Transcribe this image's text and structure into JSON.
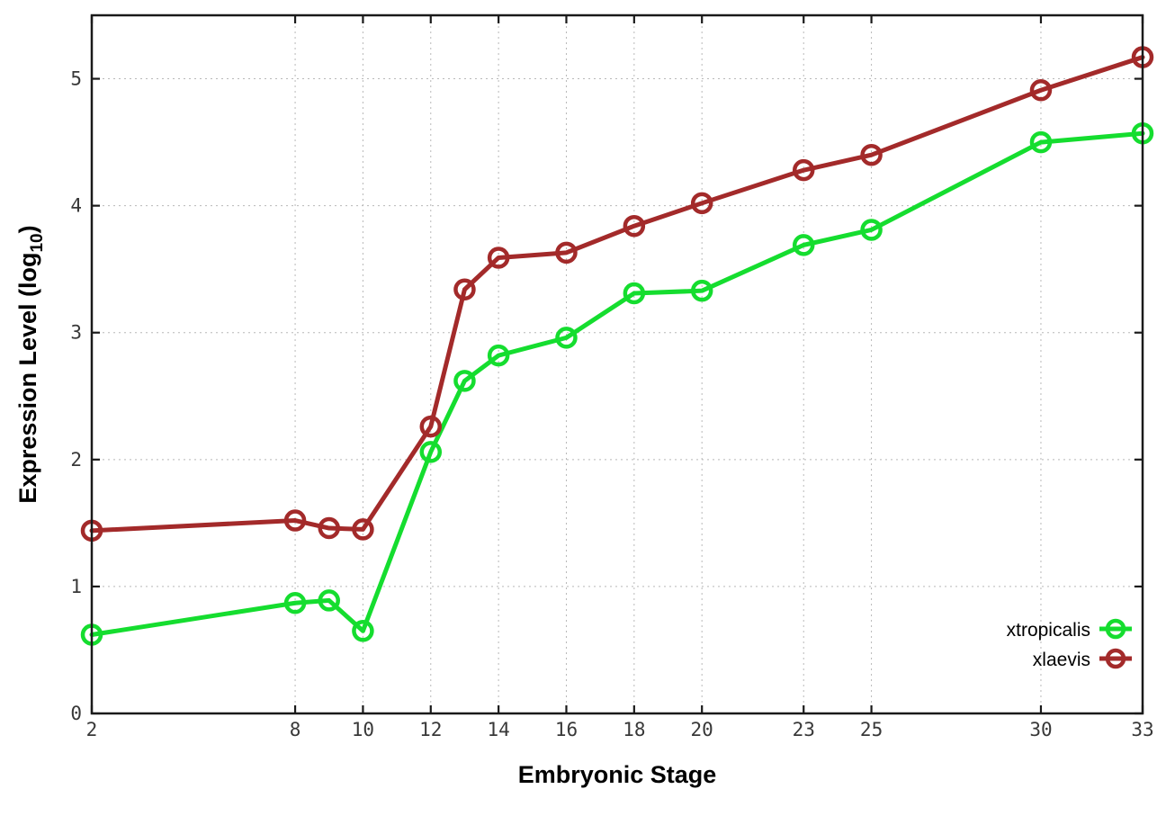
{
  "chart_data": {
    "type": "line",
    "title": "",
    "xlabel": "Embryonic Stage",
    "ylabel": {
      "main": "Expression Level (log",
      "sub": "10",
      "suffix": ")"
    },
    "xlim": [
      2,
      33
    ],
    "ylim": [
      0,
      5.5
    ],
    "x_ticks": [
      2,
      8,
      10,
      12,
      14,
      16,
      18,
      20,
      23,
      25,
      30,
      33
    ],
    "y_ticks": [
      0,
      1,
      2,
      3,
      4,
      5
    ],
    "grid": true,
    "legend_position": "inside-bottom-right",
    "x": [
      2,
      8,
      9,
      10,
      12,
      13,
      14,
      16,
      18,
      20,
      23,
      25,
      30,
      33
    ],
    "series": [
      {
        "name": "xtropicalis",
        "color": "#15dd2f",
        "values": [
          0.62,
          0.87,
          0.89,
          0.65,
          2.06,
          2.62,
          2.82,
          2.96,
          3.31,
          3.33,
          3.69,
          3.81,
          4.5,
          4.57
        ]
      },
      {
        "name": "xlaevis",
        "color": "#a32a2a",
        "values": [
          1.44,
          1.52,
          1.46,
          1.45,
          2.26,
          3.34,
          3.59,
          3.63,
          3.84,
          4.02,
          4.28,
          4.4,
          4.91,
          5.17
        ]
      }
    ]
  },
  "colors": {
    "background": "#ffffff",
    "axis": "#1a1a1a",
    "grid": "#b8b8b8",
    "tick_label": "#383838"
  }
}
